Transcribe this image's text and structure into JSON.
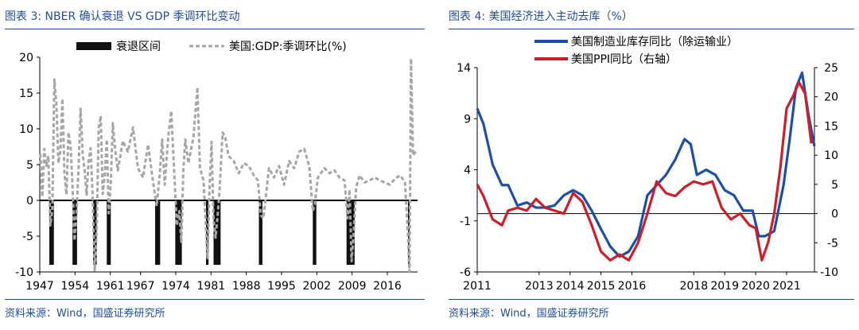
{
  "chart_data": [
    {
      "type": "line",
      "title": "图表 3:  NBER 确认衰退 VS GDP 季调环比变动",
      "source": "资料来源：Wind，国盛证券研究所",
      "legend": {
        "recession": "衰退区间",
        "gdp": "美国:GDP:季调环比(%)"
      },
      "x_ticks": [
        "1947",
        "1954",
        "1961",
        "1967",
        "1974",
        "1981",
        "1988",
        "1995",
        "2002",
        "2009",
        "2016"
      ],
      "y_ticks": [
        "20",
        "15",
        "10",
        "5",
        "0",
        "-5",
        "-10"
      ],
      "ylim": [
        -10,
        20
      ],
      "xlim": [
        1947,
        2022
      ],
      "recessions": [
        [
          1948.9,
          1949.8
        ],
        [
          1953.5,
          1954.4
        ],
        [
          1957.6,
          1958.3
        ],
        [
          1960.3,
          1961.1
        ],
        [
          1969.9,
          1970.9
        ],
        [
          1973.9,
          1975.2
        ],
        [
          1980.0,
          1980.5
        ],
        [
          1981.5,
          1982.9
        ],
        [
          1990.5,
          1991.2
        ],
        [
          2001.2,
          2001.9
        ],
        [
          2007.9,
          2009.5
        ],
        [
          2020.1,
          2020.4
        ]
      ],
      "series": [
        {
          "name": "美国:GDP:季调环比(%)",
          "x": [
            1947.1,
            1947.5,
            1947.9,
            1948.3,
            1948.7,
            1949.1,
            1949.5,
            1949.9,
            1950.3,
            1950.7,
            1951.1,
            1951.5,
            1951.9,
            1952.3,
            1952.7,
            1953.1,
            1953.5,
            1953.9,
            1954.3,
            1954.7,
            1955.1,
            1955.5,
            1955.9,
            1956.3,
            1956.7,
            1957.1,
            1957.5,
            1957.9,
            1958.3,
            1958.7,
            1959.1,
            1959.5,
            1959.9,
            1960.3,
            1960.7,
            1961.1,
            1961.5,
            1961.9,
            1962.5,
            1963.5,
            1964.5,
            1965.5,
            1966.5,
            1967.5,
            1968.5,
            1969.5,
            1970.2,
            1970.8,
            1971.3,
            1971.8,
            1972.5,
            1973.1,
            1973.7,
            1974.2,
            1974.7,
            1975.1,
            1975.5,
            1975.9,
            1976.5,
            1977.5,
            1978.3,
            1978.8,
            1979.5,
            1980.3,
            1980.7,
            1981.1,
            1981.5,
            1981.9,
            1982.3,
            1982.7,
            1983.3,
            1983.8,
            1984.5,
            1985.5,
            1986.5,
            1987.5,
            1988.5,
            1989.5,
            1990.3,
            1990.9,
            1991.4,
            1992.5,
            1993.5,
            1994.5,
            1995.5,
            1996.5,
            1997.5,
            1998.5,
            1999.5,
            2000.5,
            2001.2,
            2001.6,
            2002.2,
            2003.5,
            2004.5,
            2005.5,
            2006.5,
            2007.5,
            2008.1,
            2008.5,
            2008.9,
            2009.3,
            2009.8,
            2010.5,
            2011.5,
            2012.5,
            2013.5,
            2014.5,
            2015.5,
            2016.5,
            2017.5,
            2018.5,
            2019.5,
            2020.1,
            2020.4,
            2020.7,
            2021.1,
            2021.5,
            2021.9
          ],
          "y": [
            6.5,
            0.5,
            7.2,
            4.8,
            6.2,
            -3.5,
            -1.2,
            16.9,
            13.5,
            5.2,
            7.1,
            14.2,
            3.8,
            0.8,
            9.5,
            7.8,
            2.1,
            -5.6,
            -1.8,
            4.5,
            12.8,
            6.7,
            4.2,
            0.8,
            5.6,
            7.3,
            0.6,
            -9.8,
            -4.2,
            10.2,
            11.8,
            0.9,
            3.5,
            8.5,
            -1.8,
            2.5,
            10.8,
            7.5,
            4.2,
            8.3,
            6.8,
            10.2,
            4.5,
            3.2,
            7.8,
            2.5,
            -0.8,
            3.5,
            8.5,
            2.2,
            8.8,
            12.5,
            3.8,
            -3.5,
            -1.5,
            -5.8,
            4.2,
            8.5,
            5.2,
            8.8,
            15.8,
            4.5,
            2.8,
            -8.2,
            1.8,
            8.2,
            -2.8,
            -5.2,
            -2.2,
            1.5,
            9.5,
            8.8,
            6.2,
            5.5,
            3.8,
            5.2,
            4.8,
            3.5,
            2.8,
            -2.1,
            -2.5,
            4.5,
            3.2,
            4.8,
            2.2,
            5.5,
            4.5,
            6.8,
            7.2,
            4.8,
            -1.5,
            -0.5,
            3.2,
            4.5,
            3.8,
            4.2,
            3.2,
            2.8,
            -2.5,
            1.5,
            -8.5,
            -4.8,
            1.8,
            3.5,
            2.5,
            2.8,
            3.2,
            2.8,
            2.5,
            2.2,
            3.0,
            3.5,
            2.6,
            -5.1,
            -10.0,
            19.8,
            6.3,
            6.7,
            6.9
          ]
        }
      ]
    },
    {
      "type": "line",
      "title": "图表 4:  美国经济进入主动去库（%）",
      "source": "资料来源：Wind，国盛证券研究所",
      "x_ticks": [
        "2011",
        "2013",
        "2014",
        "2015",
        "2016",
        "2018",
        "2019",
        "2020",
        "2021"
      ],
      "y_left_ticks": [
        "14",
        "9",
        "4",
        "-1",
        "-6"
      ],
      "y_right_ticks": [
        "25",
        "20",
        "15",
        "10",
        "5",
        "0",
        "-5",
        "-10"
      ],
      "ylim_left": [
        -6,
        14
      ],
      "ylim_right": [
        -10,
        25
      ],
      "xlim": [
        2011,
        2021.9
      ],
      "series": [
        {
          "name": "美国制造业库存同比（除运输业）",
          "color": "#1f4ea8",
          "axis": "left",
          "x": [
            2011.0,
            2011.2,
            2011.5,
            2011.8,
            2012.0,
            2012.3,
            2012.6,
            2012.9,
            2013.2,
            2013.5,
            2013.8,
            2014.1,
            2014.4,
            2014.7,
            2015.0,
            2015.3,
            2015.6,
            2015.9,
            2016.2,
            2016.5,
            2016.8,
            2017.1,
            2017.4,
            2017.7,
            2017.9,
            2018.1,
            2018.4,
            2018.7,
            2019.0,
            2019.3,
            2019.6,
            2019.9,
            2020.1,
            2020.3,
            2020.6,
            2020.9,
            2021.1,
            2021.3,
            2021.5,
            2021.7,
            2021.9
          ],
          "y": [
            10.0,
            8.5,
            4.5,
            2.5,
            2.5,
            0.5,
            0.8,
            0.3,
            0.3,
            0.5,
            1.5,
            2.0,
            1.5,
            0.0,
            -1.8,
            -3.5,
            -4.5,
            -4.0,
            -2.5,
            1.5,
            2.5,
            3.5,
            5.0,
            7.0,
            6.5,
            3.5,
            4.0,
            3.5,
            2.0,
            1.5,
            0.0,
            0.0,
            -2.5,
            -2.5,
            -2.0,
            2.5,
            7.0,
            12.0,
            13.5,
            9.5,
            6.3
          ]
        },
        {
          "name": "美国PPI同比（右轴）",
          "color": "#cc1f2a",
          "axis": "right",
          "x": [
            2011.0,
            2011.2,
            2011.5,
            2011.8,
            2012.0,
            2012.3,
            2012.6,
            2012.9,
            2013.2,
            2013.5,
            2013.8,
            2014.1,
            2014.4,
            2014.7,
            2015.0,
            2015.3,
            2015.6,
            2015.9,
            2016.2,
            2016.5,
            2016.8,
            2017.1,
            2017.4,
            2017.7,
            2018.0,
            2018.3,
            2018.6,
            2018.9,
            2019.2,
            2019.5,
            2019.8,
            2020.0,
            2020.2,
            2020.4,
            2020.6,
            2020.8,
            2021.0,
            2021.2,
            2021.4,
            2021.6,
            2021.8
          ],
          "y": [
            5.0,
            3.0,
            -1.0,
            -2.0,
            0.5,
            1.0,
            0.5,
            2.5,
            1.0,
            0.5,
            0.0,
            3.5,
            2.0,
            -2.0,
            -6.5,
            -8.0,
            -7.0,
            -8.0,
            -5.0,
            0.0,
            5.5,
            3.5,
            3.0,
            4.5,
            5.5,
            5.0,
            5.5,
            1.0,
            -1.0,
            0.0,
            -2.0,
            -2.5,
            -8.0,
            -5.0,
            0.0,
            8.0,
            18.0,
            20.0,
            22.5,
            20.5,
            12.0
          ]
        }
      ]
    }
  ]
}
